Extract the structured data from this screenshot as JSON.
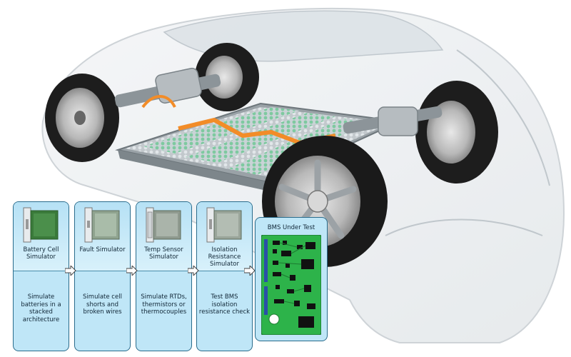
{
  "colors": {
    "panel_fill": "#bfe6f7",
    "panel_border": "#2a6c8c",
    "pcb_green": "#2db34a",
    "battery_cell_green": "#7ec9a0",
    "busbar_orange": "#f28c28"
  },
  "illustration": {
    "subject": "electric-vehicle-chassis-with-battery-pack"
  },
  "flow": {
    "steps": [
      {
        "title": "Battery Cell Simulator",
        "description": "Simulate batteries in a stacked architecture",
        "icon": "pxi-module-icon"
      },
      {
        "title": "Fault Simulator",
        "description": "Simulate cell shorts and broken wires",
        "icon": "pxi-module-icon"
      },
      {
        "title": "Temp Sensor Simulator",
        "description": "Simulate RTDs, thermistors or thermocouples",
        "icon": "pxi-module-icon"
      },
      {
        "title": "Isolation Resistance Simulator",
        "description": "Test BMS isolation resistance check",
        "icon": "pxi-module-icon"
      }
    ],
    "target": {
      "title": "BMS Under Test",
      "icon": "circuit-board-icon"
    }
  }
}
